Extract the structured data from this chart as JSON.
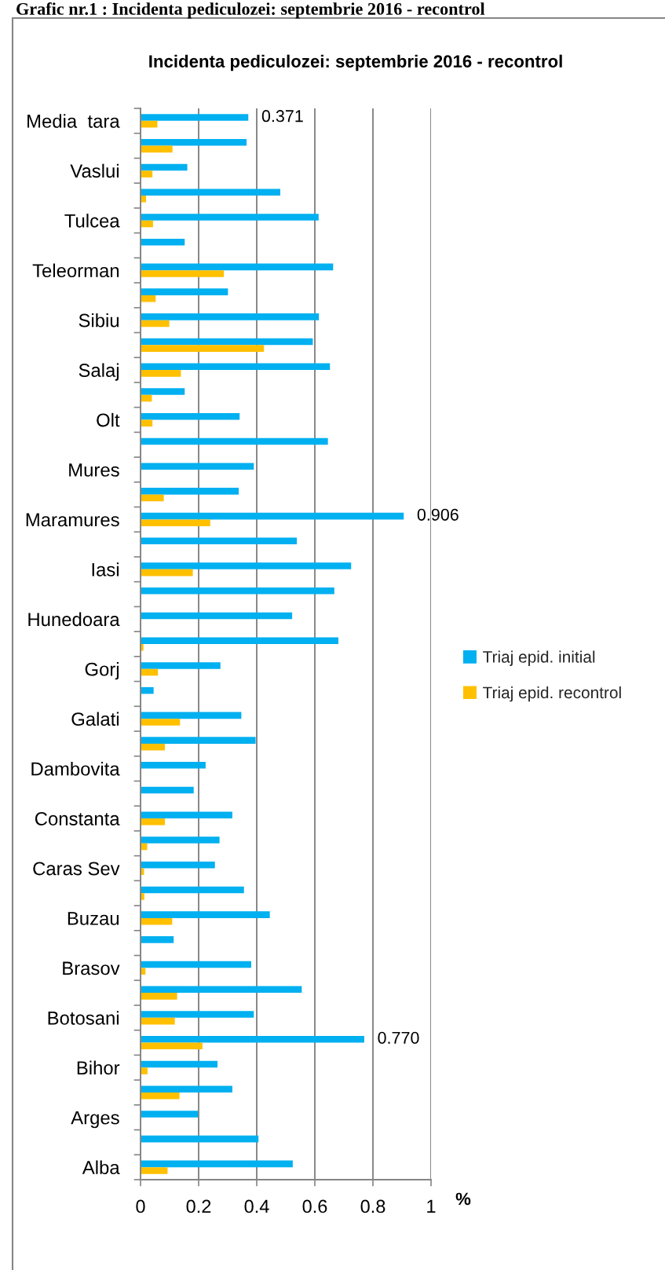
{
  "chart_data": {
    "type": "bar",
    "orientation": "horizontal",
    "title": "Grafic nr.1 : Incidenta pediculozei: septembrie 2016 - recontrol",
    "subtitle": "Incidenta pediculozei: septembrie 2016 - recontrol",
    "xlabel": "%",
    "categories": [
      "Media  tara",
      null,
      "Vaslui",
      null,
      "Tulcea",
      null,
      "Teleorman",
      null,
      "Sibiu",
      null,
      "Salaj",
      null,
      "Olt",
      null,
      "Mures",
      null,
      "Maramures",
      null,
      "Iasi",
      null,
      "Hunedoara",
      null,
      "Gorj",
      null,
      "Galati",
      null,
      "Dambovita",
      null,
      "Constanta",
      null,
      "Caras Sev",
      null,
      "Buzau",
      null,
      "Brasov",
      null,
      "Botosani",
      null,
      "Bihor",
      null,
      "Arges",
      null,
      "Alba"
    ],
    "series": [
      {
        "name": "Triaj epid. initial",
        "color": "#00b0f0",
        "values": [
          0.371,
          0.365,
          0.161,
          0.481,
          0.613,
          0.152,
          0.663,
          0.301,
          0.614,
          0.593,
          0.652,
          0.152,
          0.341,
          0.645,
          0.39,
          0.338,
          0.906,
          0.538,
          0.725,
          0.667,
          0.522,
          0.681,
          0.275,
          0.045,
          0.347,
          0.396,
          0.224,
          0.183,
          0.316,
          0.272,
          0.256,
          0.356,
          0.445,
          0.114,
          0.381,
          0.555,
          0.39,
          0.77,
          0.265,
          0.316,
          0.198,
          0.406,
          0.524
        ],
        "value_labels": [
          "0.371",
          null,
          null,
          null,
          null,
          null,
          null,
          null,
          null,
          null,
          null,
          null,
          null,
          null,
          null,
          null,
          "0.906",
          null,
          null,
          null,
          null,
          null,
          null,
          null,
          null,
          null,
          null,
          null,
          null,
          null,
          null,
          null,
          null,
          null,
          null,
          null,
          null,
          "0.770",
          null,
          null,
          null,
          null,
          null
        ]
      },
      {
        "name": "Triaj epid. recontrol",
        "color": "#ffc000",
        "values": [
          0.058,
          0.11,
          0.041,
          0.019,
          0.043,
          null,
          0.287,
          0.052,
          0.099,
          0.425,
          0.139,
          0.039,
          0.041,
          null,
          null,
          0.08,
          0.24,
          null,
          0.18,
          null,
          null,
          0.01,
          0.06,
          null,
          0.136,
          0.084,
          null,
          null,
          0.084,
          0.023,
          0.012,
          0.013,
          0.109,
          null,
          0.017,
          0.126,
          0.118,
          0.213,
          0.024,
          0.134,
          null,
          null,
          0.093
        ]
      }
    ],
    "xlim": [
      0,
      1
    ],
    "xticks": [
      0,
      0.2,
      0.4,
      0.6,
      0.8,
      1
    ],
    "grid": "x",
    "legend": "right"
  }
}
